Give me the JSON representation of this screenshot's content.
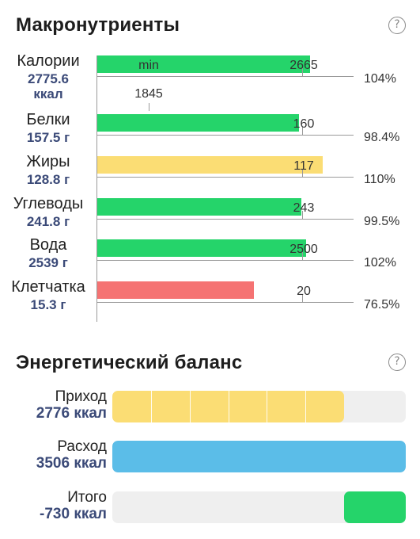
{
  "macronutrients": {
    "title": "Макронутриенты",
    "help_glyph": "?",
    "colors": {
      "green": "#25d46a",
      "yellow": "#fbdd74",
      "red": "#f57373"
    },
    "items": [
      {
        "name": "Калории",
        "amount": "2775.6",
        "unit": "ккал",
        "norm": "2665",
        "percent": "104%",
        "min": "1845",
        "min_caption": "min",
        "fraction": 1.04,
        "color": "#25d46a"
      },
      {
        "name": "Белки",
        "amount": "157.5 г",
        "norm": "160",
        "percent": "98.4%",
        "fraction": 0.984,
        "color": "#25d46a"
      },
      {
        "name": "Жиры",
        "amount": "128.8 г",
        "norm": "117",
        "percent": "110%",
        "fraction": 1.1,
        "color": "#fbdd74"
      },
      {
        "name": "Углеводы",
        "amount": "241.8 г",
        "norm": "243",
        "percent": "99.5%",
        "fraction": 0.995,
        "color": "#25d46a"
      },
      {
        "name": "Вода",
        "amount": "2539 г",
        "norm": "2500",
        "percent": "102%",
        "fraction": 1.02,
        "color": "#25d46a"
      },
      {
        "name": "Клетчатка",
        "amount": "15.3 г",
        "norm": "20",
        "percent": "76.5%",
        "fraction": 0.765,
        "color": "#f57373"
      }
    ]
  },
  "energy_balance": {
    "title": "Энергетический баланс",
    "help_glyph": "?",
    "rows": [
      {
        "label": "Приход",
        "value": "2776 ккал",
        "fraction": 0.79,
        "color": "#fbdd74",
        "segments": 6
      },
      {
        "label": "Расход",
        "value": "3506 ккал",
        "fraction": 1.0,
        "color": "#5bbde8",
        "segments": 0
      },
      {
        "label": "Итого",
        "value": "-730 ккал",
        "fraction": 0.21,
        "color": "#25d46a",
        "segments": 0,
        "align": "right"
      }
    ]
  }
}
